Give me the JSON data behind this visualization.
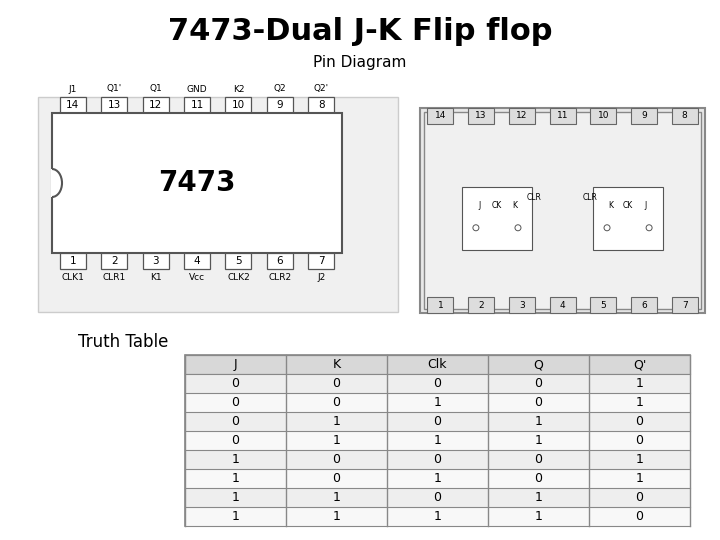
{
  "title": "7473-Dual J-K Flip flop",
  "subtitle": "Pin Diagram",
  "truth_table_label": "Truth Table",
  "table_headers": [
    "J",
    "K",
    "Clk",
    "Q",
    "Q'"
  ],
  "table_data": [
    [
      "0",
      "0",
      "0",
      "0",
      "1"
    ],
    [
      "0",
      "0",
      "1",
      "0",
      "1"
    ],
    [
      "0",
      "1",
      "0",
      "1",
      "0"
    ],
    [
      "0",
      "1",
      "1",
      "1",
      "0"
    ],
    [
      "1",
      "0",
      "0",
      "0",
      "1"
    ],
    [
      "1",
      "0",
      "1",
      "0",
      "1"
    ],
    [
      "1",
      "1",
      "0",
      "1",
      "0"
    ],
    [
      "1",
      "1",
      "1",
      "1",
      "0"
    ]
  ],
  "top_pins": [
    "J1",
    "Q1'",
    "Q1",
    "GND",
    "K2",
    "Q2",
    "Q2'"
  ],
  "top_numbers": [
    "14",
    "13",
    "12",
    "11",
    "10",
    "9",
    "8"
  ],
  "bottom_pins": [
    "CLK1",
    "CLR1",
    "K1",
    "Vcc",
    "CLK2",
    "CLR2",
    "J2"
  ],
  "bottom_numbers": [
    "1",
    "2",
    "3",
    "4",
    "5",
    "6",
    "7"
  ],
  "chip_label": "7473",
  "bg_color": "#ffffff"
}
